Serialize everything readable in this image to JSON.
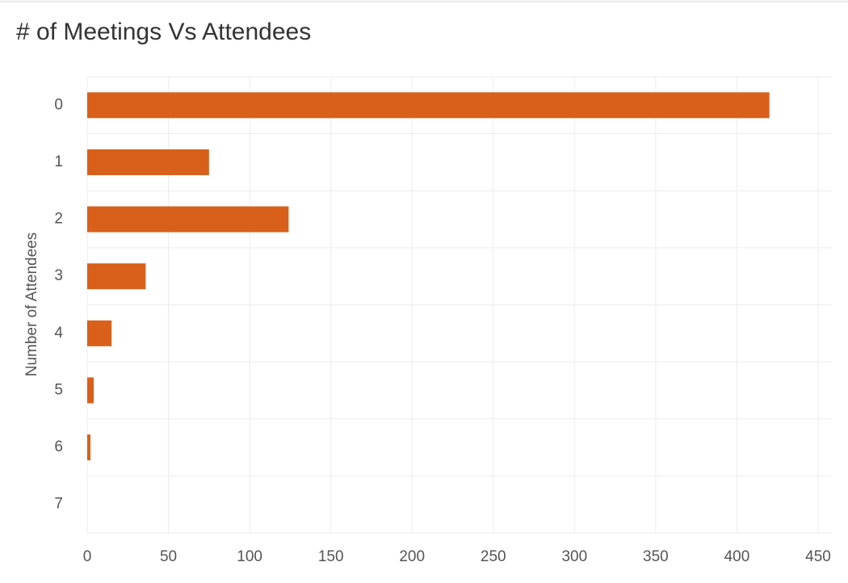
{
  "chart_data": {
    "type": "bar",
    "orientation": "horizontal",
    "title": "# of Meetings Vs Attendees",
    "y_label": "Number of Attendees",
    "categories": [
      "0",
      "1",
      "2",
      "3",
      "4",
      "5",
      "6",
      "7"
    ],
    "values": [
      420,
      75,
      124,
      36,
      15,
      4,
      2,
      0
    ],
    "color": "#d9601a",
    "xlim": [
      0,
      450
    ],
    "xticks": [
      0,
      50,
      100,
      150,
      200,
      250,
      300,
      350,
      400,
      450
    ],
    "grid": true
  }
}
